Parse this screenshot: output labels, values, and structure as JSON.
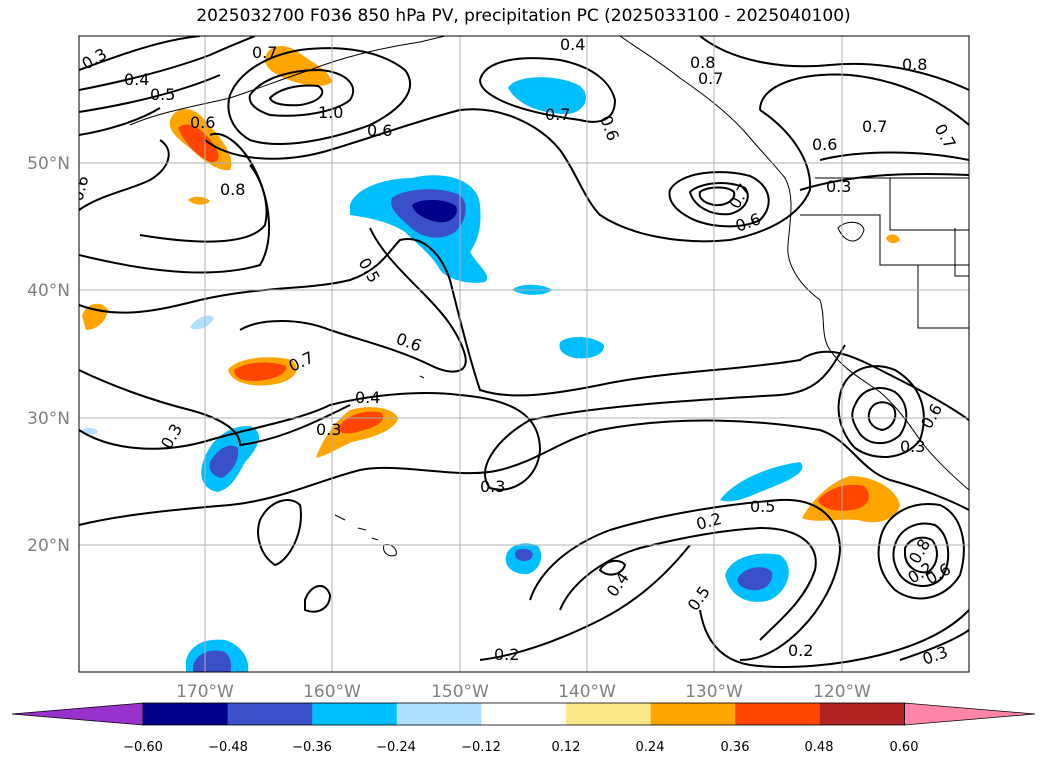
{
  "title": "2025032700 F036 850 hPa PV, precipitation PC (2025033100 - 2025040100)",
  "latitude_labels": [
    "50°N",
    "40°N",
    "30°N",
    "20°N"
  ],
  "longitude_labels": [
    "170°W",
    "160°W",
    "150°W",
    "140°W",
    "130°W",
    "120°W"
  ],
  "colorbar": {
    "ticks": [
      "−0.60",
      "−0.48",
      "−0.36",
      "−0.24",
      "−0.12",
      "0.12",
      "0.24",
      "0.36",
      "0.48",
      "0.60"
    ],
    "colors": [
      "#9932cc",
      "#00008b",
      "#3a50c8",
      "#00bfff",
      "#b0e0ff",
      "#ffffff",
      "#ffe88a",
      "#ffa500",
      "#ff4500",
      "#b22222",
      "#ff85a8"
    ]
  },
  "contour_labels": [
    "0.3",
    "0.4",
    "0.5",
    "0.7",
    "0.6",
    "1.0",
    "0.6",
    "0.8",
    "0.6",
    "0.4",
    "0.8",
    "0.7",
    "0.6",
    "0.7",
    "0.7",
    "0.8",
    "0.7",
    "0.6",
    "0.3",
    "0.6",
    "0.5",
    "0.6",
    "0.7",
    "0.4",
    "0.3",
    "0.3",
    "0.3",
    "0.2",
    "0.5",
    "0.4",
    "0.5",
    "0.2",
    "0.2",
    "0.3",
    "0.3",
    "0.2",
    "0.8",
    "0.6",
    "0.6",
    "0.7"
  ]
}
